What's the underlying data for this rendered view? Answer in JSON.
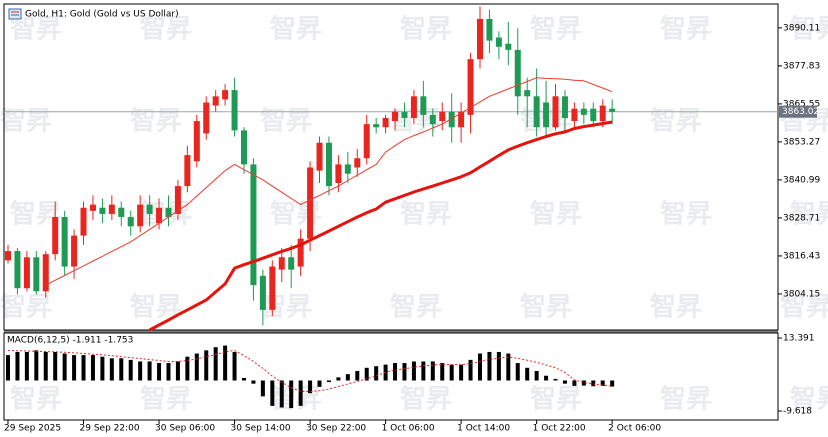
{
  "chart_data": [
    {
      "type": "candlestick",
      "title": "Gold, H1:  Gold (Gold vs US Dollar)",
      "watermark": "智昇",
      "categories": [
        "29 Sep 2025",
        null,
        null,
        null,
        null,
        null,
        null,
        null,
        "29 Sep 22:00",
        null,
        null,
        null,
        null,
        null,
        null,
        null,
        "30 Sep 06:00",
        null,
        null,
        null,
        null,
        null,
        null,
        null,
        "30 Sep 14:00",
        null,
        null,
        null,
        null,
        null,
        null,
        null,
        "30 Sep 22:00",
        null,
        null,
        null,
        null,
        null,
        null,
        null,
        "1 Oct 06:00",
        null,
        null,
        null,
        null,
        null,
        null,
        null,
        "1 Oct 14:00",
        null,
        null,
        null,
        null,
        null,
        null,
        null,
        "1 Oct 22:00",
        null,
        null,
        null,
        null,
        null,
        null,
        null,
        "2 Oct 06:00"
      ],
      "open": [
        3815,
        3818,
        3806,
        3816,
        3805,
        3817,
        3829,
        3813,
        3823,
        3831,
        3832,
        3830,
        3832,
        3829,
        3826,
        3833,
        3827,
        3832,
        3830,
        3839,
        3847,
        3856,
        3865,
        3867,
        3870,
        3857,
        3846,
        3810,
        3799,
        3812,
        3816,
        3813,
        3822,
        3844,
        3853,
        3840,
        3846,
        3845,
        3848,
        3859,
        3858,
        3860,
        3863,
        3861,
        3868,
        3862,
        3860,
        3863,
        3858,
        3862,
        3880,
        3893,
        3887,
        3885,
        3883,
        3870,
        3868,
        3866,
        3858,
        3868,
        3860,
        3864,
        3864,
        3860,
        3864
      ],
      "high": [
        3820,
        3819,
        3818,
        3818,
        3818,
        3834,
        3831,
        3825,
        3834,
        3836,
        3835,
        3836,
        3834,
        3831,
        3836,
        3836,
        3835,
        3836,
        3841,
        3852,
        3862,
        3868,
        3870,
        3872,
        3874,
        3858,
        3848,
        3812,
        3815,
        3819,
        3820,
        3825,
        3847,
        3855,
        3855,
        3849,
        3850,
        3851,
        3862,
        3861,
        3862,
        3864,
        3866,
        3870,
        3873,
        3864,
        3866,
        3869,
        3866,
        3882,
        3897,
        3896,
        3889,
        3892,
        3890,
        3874,
        3877,
        3873,
        3872,
        3870,
        3866,
        3866,
        3866,
        3867,
        3867
      ],
      "low": [
        3814,
        3804,
        3805,
        3804,
        3803,
        3815,
        3810,
        3809,
        3820,
        3828,
        3827,
        3828,
        3826,
        3823,
        3824,
        3826,
        3825,
        3826,
        3828,
        3837,
        3845,
        3854,
        3863,
        3865,
        3855,
        3843,
        3802,
        3794,
        3797,
        3808,
        3806,
        3810,
        3818,
        3840,
        3836,
        3837,
        3840,
        3842,
        3846,
        3856,
        3856,
        3857,
        3858,
        3859,
        3858,
        3855,
        3857,
        3853,
        3853,
        3856,
        3877,
        3882,
        3880,
        3878,
        3862,
        3858,
        3855,
        3855,
        3857,
        3856,
        3858,
        3859,
        3858,
        3858,
        3859
      ],
      "close": [
        3818,
        3806,
        3816,
        3805,
        3817,
        3829,
        3813,
        3823,
        3832,
        3833,
        3830,
        3833,
        3829,
        3826,
        3833,
        3830,
        3832,
        3829,
        3839,
        3849,
        3860,
        3866,
        3868,
        3870,
        3857,
        3846,
        3807,
        3799,
        3813,
        3816,
        3812,
        3822,
        3845,
        3853,
        3839,
        3846,
        3843,
        3848,
        3859,
        3858,
        3861,
        3863,
        3861,
        3868,
        3862,
        3859,
        3863,
        3858,
        3863,
        3880,
        3893,
        3886,
        3884,
        3883,
        3868,
        3868,
        3858,
        3858,
        3868,
        3861,
        3864,
        3862,
        3860,
        3865,
        3863.02
      ],
      "up_color": "#e8251f",
      "down_color": "#1f9a55",
      "lines": [
        {
          "color": "#f03a2e",
          "width": 1,
          "values": [
            null,
            null,
            null,
            null,
            3807,
            3808.6,
            3810.1,
            3811.7,
            3813.2,
            3814.8,
            3816.3,
            3817.9,
            3819.4,
            3821,
            3823,
            3825,
            3827,
            3829,
            3831,
            3833,
            3835.8,
            3838.5,
            3841.3,
            3844,
            3846,
            3844.3,
            3842.7,
            3841,
            3839,
            3837,
            3835,
            3833,
            3834.5,
            3836,
            3837.5,
            3839,
            3840.8,
            3842.5,
            3844.3,
            3846,
            3850,
            3852,
            3854,
            3855.3,
            3856.5,
            3857.8,
            3859,
            3860.8,
            3862.6,
            3864.4,
            3866.2,
            3868,
            3869.2,
            3870.4,
            3871.6,
            3872.8,
            3874,
            3873.8,
            3873.7,
            3873.5,
            3873.2,
            3873,
            3871.8,
            3870.7,
            3869.5
          ]
        },
        {
          "color": "#e8120c",
          "width": 3,
          "values": [
            null,
            null,
            null,
            null,
            null,
            null,
            null,
            null,
            null,
            null,
            null,
            null,
            null,
            null,
            null,
            3792.5,
            3794.1,
            3795.7,
            3797.4,
            3799,
            3800.6,
            3802.2,
            3804.8,
            3807.4,
            3812.5,
            3813.6,
            3814.6,
            3815.7,
            3816.8,
            3817.9,
            3818.9,
            3820,
            3821.5,
            3823,
            3824.5,
            3826,
            3827.5,
            3829,
            3830.4,
            3831.6,
            3833.8,
            3834.9,
            3836,
            3837.1,
            3838.1,
            3839,
            3840,
            3841,
            3842,
            3843.3,
            3845.2,
            3847,
            3848.9,
            3850.7,
            3851.9,
            3853,
            3854,
            3855,
            3855.9,
            3856.5,
            3857.6,
            3858.2,
            3858.7,
            3859.2,
            3859.7
          ]
        }
      ],
      "last_price": 3863.02,
      "ylim": [
        3792.5,
        3897.5
      ],
      "yticks": [
        3890.11,
        3877.83,
        3865.55,
        3853.27,
        3840.99,
        3828.71,
        3816.43,
        3804.15
      ]
    },
    {
      "type": "macd",
      "title": "MACD(6,12,5) -1.911 -1.753",
      "color": "#000000",
      "signal_color": "#e8251f",
      "values": [
        8,
        9,
        9,
        9.5,
        9,
        9,
        8.5,
        8,
        8,
        8,
        7.5,
        7,
        7,
        6.5,
        6,
        6,
        5.5,
        5.5,
        6,
        7.5,
        8.5,
        9.5,
        10.5,
        11,
        9,
        0.8,
        -1,
        -5,
        -8,
        -8.5,
        -8.7,
        -8,
        -4,
        -2,
        -0.5,
        1,
        2,
        3,
        4,
        4.5,
        5,
        5.5,
        5.5,
        6,
        6,
        6,
        5.5,
        5,
        5,
        6.5,
        8.5,
        9,
        9,
        8.5,
        5.5,
        4,
        3,
        1.5,
        0.5,
        -1,
        -1.7,
        -1.6,
        -1.8,
        -1.7,
        -1.911
      ],
      "signal": [
        9.5,
        9.4,
        9.3,
        9.2,
        9.1,
        9,
        8.9,
        8.7,
        8.5,
        8.3,
        8.1,
        7.8,
        7.5,
        7.2,
        6.9,
        6.6,
        6.3,
        6,
        6,
        6.3,
        6.8,
        7.5,
        8.2,
        9,
        9.5,
        7.8,
        6,
        3.8,
        1.4,
        -0.6,
        -2.2,
        -3.4,
        -3.5,
        -3.2,
        -2.7,
        -1.9,
        -1.1,
        -0.3,
        0.6,
        1.4,
        2.7,
        3.3,
        3.7,
        4.2,
        4.6,
        4.9,
        5,
        5,
        5,
        5.3,
        6,
        6.6,
        7.1,
        7.4,
        7,
        6.4,
        5.7,
        4.9,
        4,
        2.5,
        0.2,
        -0.6,
        -1.1,
        -1.5,
        -1.753
      ],
      "ylim": [
        -12.45,
        14.97
      ],
      "yticks": [
        13.391,
        -9.618
      ]
    }
  ]
}
